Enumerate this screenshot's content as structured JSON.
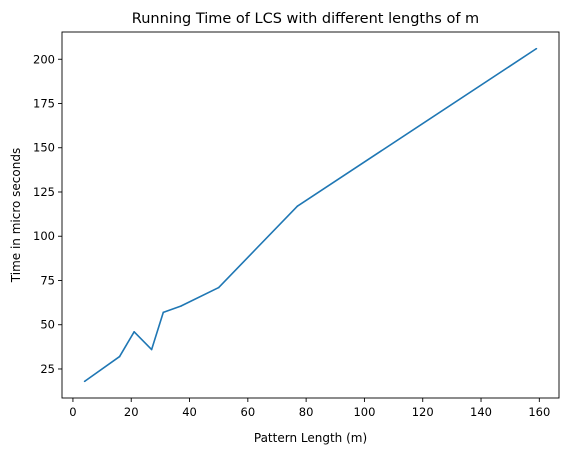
{
  "chart_data": {
    "type": "line",
    "title": "Running Time of LCS with different lengths of m",
    "xlabel": "Pattern Length (m)",
    "ylabel": "Time in micro seconds",
    "xlim": [
      -3.75,
      166.75
    ],
    "ylim": [
      8.6,
      215.4
    ],
    "xticks": [
      0,
      20,
      40,
      60,
      80,
      100,
      120,
      140,
      160
    ],
    "yticks": [
      25,
      50,
      75,
      100,
      125,
      150,
      175,
      200
    ],
    "grid": false,
    "series": [
      {
        "color": "#1f77b4",
        "x": [
          4,
          16,
          21,
          27,
          31,
          37,
          50,
          77,
          159
        ],
        "y": [
          18,
          32,
          46,
          36,
          57,
          60.5,
          71,
          117,
          206
        ]
      }
    ]
  }
}
